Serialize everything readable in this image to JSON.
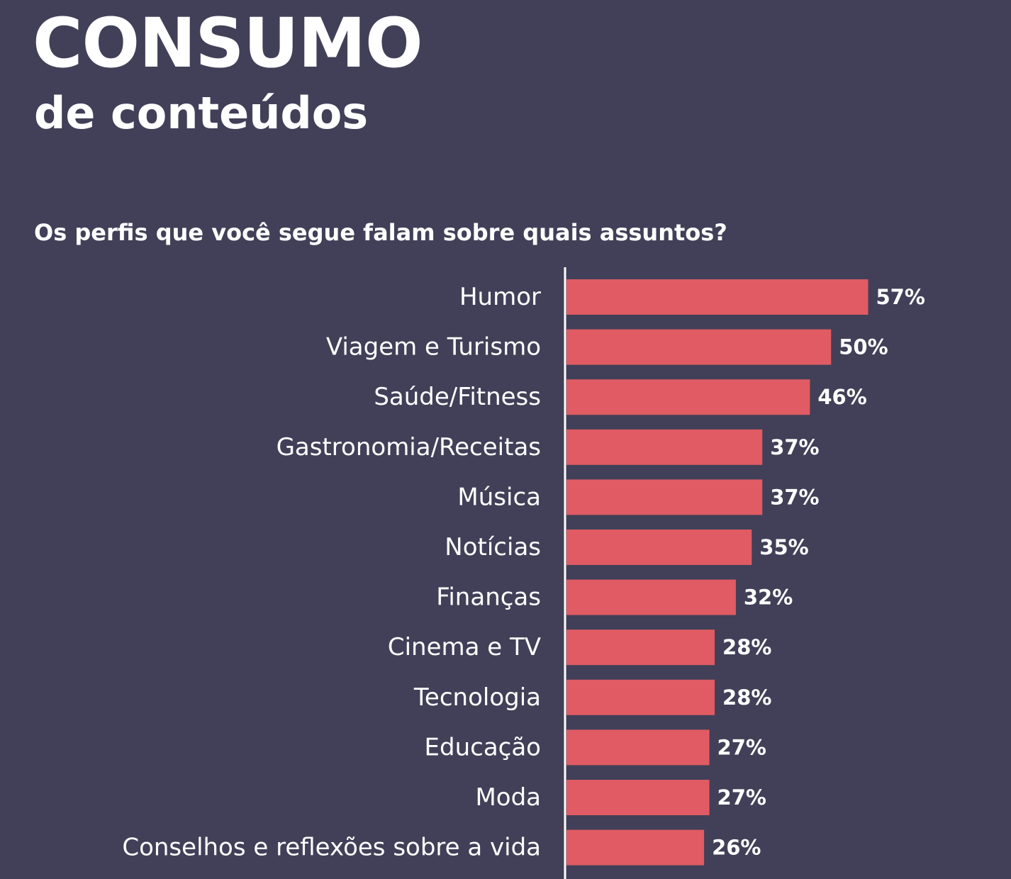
{
  "header": {
    "title": "CONSUMO",
    "subtitle": "de conteúdos"
  },
  "colors": {
    "background": "#414058",
    "bar": "#E05B63",
    "text": "#FFFFFF",
    "axis": "#FFFFFF"
  },
  "chart_data": {
    "type": "bar",
    "orientation": "horizontal",
    "title": "Os perfis que você segue falam sobre quais assuntos?",
    "categories": [
      "Humor",
      "Viagem e Turismo",
      "Saúde/Fitness",
      "Gastronomia/Receitas",
      "Música",
      "Notícias",
      "Finanças",
      "Cinema e TV",
      "Tecnologia",
      "Educação",
      "Moda",
      "Conselhos e reflexões sobre a vida"
    ],
    "values": [
      57,
      50,
      46,
      37,
      37,
      35,
      32,
      28,
      28,
      27,
      27,
      26
    ],
    "value_labels": [
      "57%",
      "50%",
      "46%",
      "37%",
      "37%",
      "35%",
      "32%",
      "28%",
      "28%",
      "27%",
      "27%",
      "26%"
    ],
    "unit": "%",
    "xlim": [
      0,
      100
    ],
    "grid": false,
    "legend": "none"
  }
}
